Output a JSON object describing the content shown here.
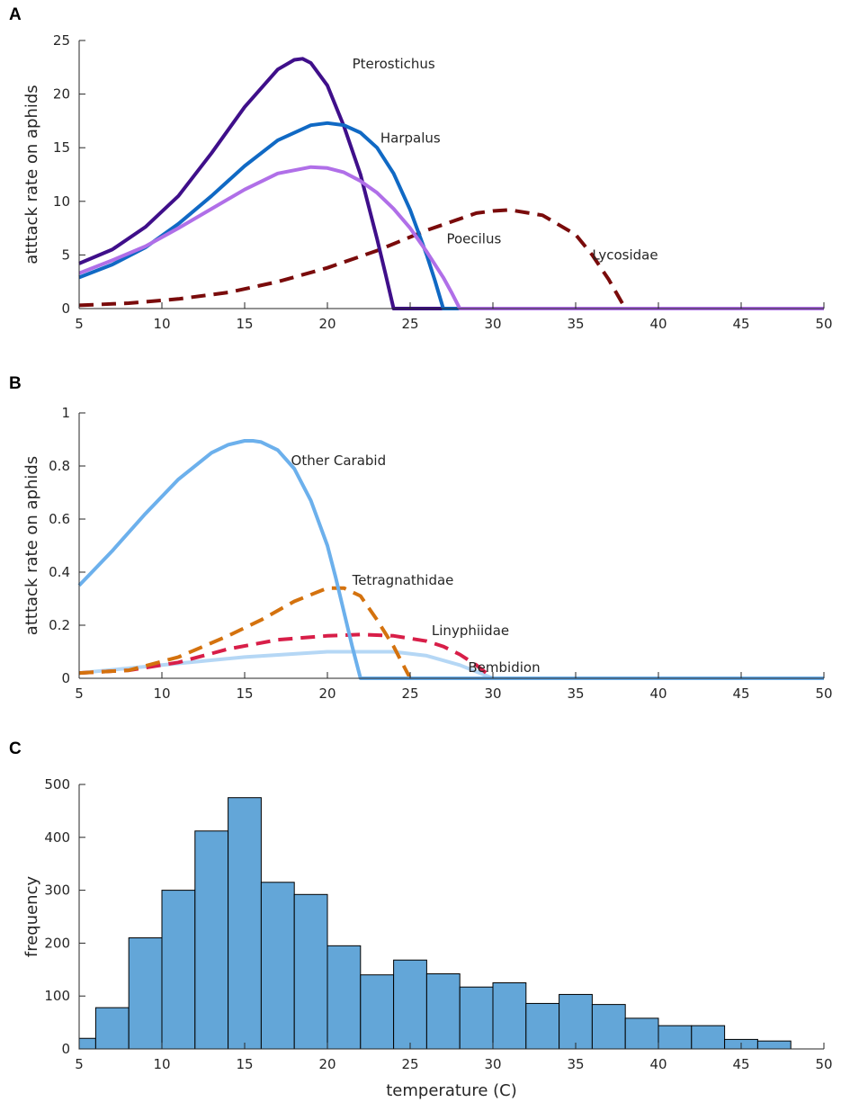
{
  "chart_data": [
    {
      "panel": "A",
      "type": "line",
      "title": "",
      "xlabel": "",
      "ylabel": "atttack rate on aphids",
      "xlim": [
        5,
        50
      ],
      "ylim": [
        0,
        25
      ],
      "xticks": [
        5,
        10,
        15,
        20,
        25,
        30,
        35,
        40,
        45,
        50
      ],
      "yticks": [
        0,
        5,
        10,
        15,
        20,
        25
      ],
      "series": [
        {
          "name": "Lycosidae",
          "label": "Lycosidae",
          "color": "#7a0b0b",
          "dashed": true,
          "width": 4,
          "x": [
            5,
            8,
            11,
            14,
            17,
            20,
            23,
            26,
            29,
            30,
            31,
            33,
            35,
            36,
            37,
            38,
            50
          ],
          "y": [
            0.3,
            0.5,
            0.9,
            1.5,
            2.5,
            3.8,
            5.4,
            7.3,
            8.9,
            9.1,
            9.2,
            8.7,
            6.9,
            5.0,
            2.7,
            0,
            0
          ]
        },
        {
          "name": "Pterostichus",
          "label": "Pterostichus",
          "color": "#3f0f8a",
          "dashed": false,
          "width": 4,
          "x": [
            5,
            7,
            9,
            11,
            13,
            15,
            17,
            18,
            18.5,
            19,
            20,
            21,
            22,
            23,
            23.5,
            24,
            50
          ],
          "y": [
            4.2,
            5.5,
            7.6,
            10.5,
            14.5,
            18.8,
            22.3,
            23.2,
            23.3,
            22.9,
            20.8,
            17.0,
            12.5,
            6.5,
            3.3,
            0,
            0
          ]
        },
        {
          "name": "Harpalus",
          "label": "Harpalus",
          "color": "#1069c4",
          "dashed": false,
          "width": 4,
          "x": [
            5,
            7,
            9,
            11,
            13,
            15,
            17,
            19,
            20,
            21,
            22,
            23,
            24,
            25,
            26,
            26.5,
            27,
            50
          ],
          "y": [
            2.9,
            4.1,
            5.7,
            7.9,
            10.5,
            13.3,
            15.7,
            17.1,
            17.3,
            17.1,
            16.4,
            15.0,
            12.6,
            9.2,
            5.0,
            2.6,
            0,
            0
          ]
        },
        {
          "name": "Poecilus",
          "label": "Poecilus",
          "color": "#b06fe8",
          "dashed": false,
          "width": 4,
          "x": [
            5,
            7,
            9,
            11,
            13,
            15,
            17,
            19,
            20,
            21,
            22,
            23,
            24,
            25,
            26,
            27,
            27.5,
            28,
            50
          ],
          "y": [
            3.3,
            4.5,
            5.8,
            7.5,
            9.3,
            11.1,
            12.6,
            13.2,
            13.1,
            12.7,
            11.9,
            10.8,
            9.3,
            7.5,
            5.3,
            2.9,
            1.5,
            0,
            0
          ]
        }
      ],
      "annotations": [
        {
          "text": "Pterostichus",
          "x": 21.5,
          "y": 22.8
        },
        {
          "text": "Harpalus",
          "x": 23.2,
          "y": 15.9
        },
        {
          "text": "Poecilus",
          "x": 27.2,
          "y": 6.5
        },
        {
          "text": "Lycosidae",
          "x": 36,
          "y": 5.0
        }
      ]
    },
    {
      "panel": "B",
      "type": "line",
      "title": "",
      "xlabel": "",
      "ylabel": "atttack rate on aphids",
      "xlim": [
        5,
        50
      ],
      "ylim": [
        0,
        1
      ],
      "xticks": [
        5,
        10,
        15,
        20,
        25,
        30,
        35,
        40,
        45,
        50
      ],
      "yticks": [
        0,
        0.2,
        0.4,
        0.6,
        0.8,
        1
      ],
      "series": [
        {
          "name": "Bembidion",
          "label": "Bembidion",
          "color": "#b5d7f5",
          "dashed": false,
          "width": 4,
          "x": [
            5,
            10,
            15,
            20,
            24,
            26,
            28,
            29,
            30,
            50
          ],
          "y": [
            0.02,
            0.05,
            0.08,
            0.1,
            0.1,
            0.085,
            0.05,
            0.025,
            0,
            0
          ]
        },
        {
          "name": "Linyphiidae",
          "label": "Linyphiidae",
          "color": "#d81e48",
          "dashed": true,
          "width": 4,
          "x": [
            5,
            8,
            11,
            14,
            17,
            20,
            22,
            24,
            26,
            27,
            28,
            29,
            30,
            50
          ],
          "y": [
            0.02,
            0.03,
            0.06,
            0.11,
            0.145,
            0.16,
            0.165,
            0.16,
            0.14,
            0.12,
            0.09,
            0.05,
            0,
            0
          ]
        },
        {
          "name": "Tetragnathidae",
          "label": "Tetragnathidae",
          "color": "#d4720e",
          "dashed": true,
          "width": 4,
          "x": [
            5,
            8,
            11,
            14,
            16,
            18,
            20,
            21,
            22,
            23,
            24,
            24.5,
            25,
            50
          ],
          "y": [
            0.02,
            0.03,
            0.08,
            0.16,
            0.22,
            0.29,
            0.34,
            0.34,
            0.31,
            0.22,
            0.12,
            0.06,
            0,
            0
          ]
        },
        {
          "name": "Other Carabid",
          "label": "Other Carabid",
          "color": "#6cb0ec",
          "dashed": false,
          "width": 4,
          "x": [
            5,
            7,
            9,
            11,
            13,
            14,
            15,
            15.5,
            16,
            17,
            18,
            19,
            20,
            20.5,
            21,
            21.5,
            22,
            50
          ],
          "y": [
            0.35,
            0.48,
            0.62,
            0.75,
            0.85,
            0.88,
            0.895,
            0.895,
            0.89,
            0.86,
            0.79,
            0.67,
            0.5,
            0.38,
            0.25,
            0.12,
            0,
            0
          ]
        }
      ],
      "annotations": [
        {
          "text": "Other Carabid",
          "x": 17.8,
          "y": 0.82
        },
        {
          "text": "Tetragnathidae",
          "x": 21.5,
          "y": 0.37
        },
        {
          "text": "Linyphiidae",
          "x": 26.3,
          "y": 0.18
        },
        {
          "text": "Bembidion",
          "x": 28.5,
          "y": 0.04
        }
      ]
    },
    {
      "panel": "C",
      "type": "bar",
      "title": "",
      "xlabel": "temperature (C)",
      "ylabel": "frequency",
      "xlim": [
        5,
        50
      ],
      "ylim": [
        0,
        500
      ],
      "xticks": [
        5,
        10,
        15,
        20,
        25,
        30,
        35,
        40,
        45,
        50
      ],
      "yticks": [
        0,
        100,
        200,
        300,
        400,
        500
      ],
      "color": "#63a6d8",
      "edgecolor": "#000000",
      "bins": [
        {
          "x0": 5,
          "x1": 6,
          "value": 20
        },
        {
          "x0": 6,
          "x1": 8,
          "value": 78
        },
        {
          "x0": 8,
          "x1": 10,
          "value": 210
        },
        {
          "x0": 10,
          "x1": 12,
          "value": 300
        },
        {
          "x0": 12,
          "x1": 14,
          "value": 412
        },
        {
          "x0": 14,
          "x1": 16,
          "value": 475
        },
        {
          "x0": 16,
          "x1": 18,
          "value": 315
        },
        {
          "x0": 18,
          "x1": 20,
          "value": 292
        },
        {
          "x0": 20,
          "x1": 22,
          "value": 195
        },
        {
          "x0": 22,
          "x1": 24,
          "value": 140
        },
        {
          "x0": 24,
          "x1": 26,
          "value": 168
        },
        {
          "x0": 26,
          "x1": 28,
          "value": 142
        },
        {
          "x0": 28,
          "x1": 30,
          "value": 117
        },
        {
          "x0": 30,
          "x1": 32,
          "value": 125
        },
        {
          "x0": 32,
          "x1": 34,
          "value": 86
        },
        {
          "x0": 34,
          "x1": 36,
          "value": 103
        },
        {
          "x0": 36,
          "x1": 38,
          "value": 84
        },
        {
          "x0": 38,
          "x1": 40,
          "value": 58
        },
        {
          "x0": 40,
          "x1": 42,
          "value": 44
        },
        {
          "x0": 42,
          "x1": 44,
          "value": 44
        },
        {
          "x0": 44,
          "x1": 46,
          "value": 18
        },
        {
          "x0": 46,
          "x1": 48,
          "value": 15
        }
      ]
    }
  ]
}
